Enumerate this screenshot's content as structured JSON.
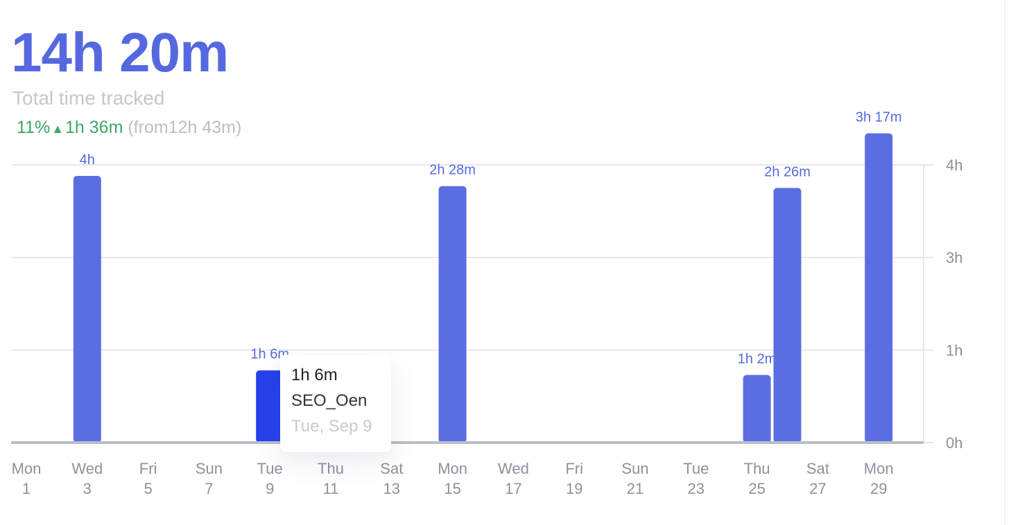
{
  "summary": {
    "total": "14h 20m",
    "subtitle": "Total time tracked",
    "delta_percent": "11%",
    "delta_arrow": "▲",
    "delta_time": "1h 36m",
    "previous": "(from12h 43m)",
    "colors": {
      "delta_up": "#3fa566"
    }
  },
  "tooltip": {
    "value": "1h 6m",
    "project": "SEO_Oen",
    "date": "Tue, Sep 9"
  },
  "chart_data": {
    "type": "bar",
    "x_axis": {
      "ticks": [
        {
          "day": "Mon",
          "date": "1"
        },
        {
          "day": "Wed",
          "date": "3"
        },
        {
          "day": "Fri",
          "date": "5"
        },
        {
          "day": "Sun",
          "date": "7"
        },
        {
          "day": "Tue",
          "date": "9"
        },
        {
          "day": "Thu",
          "date": "11"
        },
        {
          "day": "Sat",
          "date": "13"
        },
        {
          "day": "Mon",
          "date": "15"
        },
        {
          "day": "Wed",
          "date": "17"
        },
        {
          "day": "Fri",
          "date": "19"
        },
        {
          "day": "Sun",
          "date": "21"
        },
        {
          "day": "Tue",
          "date": "23"
        },
        {
          "day": "Thu",
          "date": "25"
        },
        {
          "day": "Sat",
          "date": "27"
        },
        {
          "day": "Mon",
          "date": "29"
        }
      ],
      "first_day": 1,
      "last_day": 30
    },
    "y_axis": {
      "ticks": [
        {
          "value": 0,
          "label": "0h"
        },
        {
          "value": 1,
          "label": "1h"
        },
        {
          "value": 2,
          "label": "3h"
        },
        {
          "value": 3,
          "label": "4h"
        }
      ],
      "position": "right",
      "ylim": [
        0,
        3
      ]
    },
    "bars": [
      {
        "day": 3,
        "value": 2.88,
        "label": "4h",
        "highlighted": false
      },
      {
        "day": 9,
        "value": 0.78,
        "label": "1h 6m",
        "highlighted": true
      },
      {
        "day": 15,
        "value": 2.77,
        "label": "2h 28m",
        "highlighted": false
      },
      {
        "day": 25,
        "value": 0.73,
        "label": "1h 2m",
        "highlighted": false
      },
      {
        "day": 26,
        "value": 2.75,
        "label": "2h 26m",
        "highlighted": false
      },
      {
        "day": 29,
        "value": 3.34,
        "label": "3h 17m",
        "highlighted": false
      }
    ],
    "grid": true,
    "colors": {
      "bar": "#5b6ee1",
      "bar_highlight": "#2640ea",
      "label": "#5568e0",
      "grid": "#dfe1e6",
      "axis_text": "#8c919b"
    }
  }
}
